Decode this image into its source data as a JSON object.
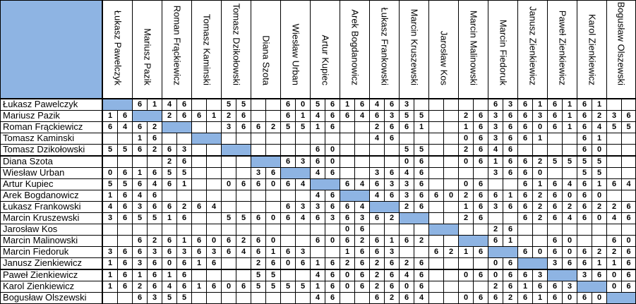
{
  "players": [
    "Łukasz Pawelczyk",
    "Mariusz Pazik",
    "Roman Frąckiewicz",
    "Tomasz Kaminski",
    "Tomasz Dzikołowski",
    "Diana Szota",
    "Wiesław Urban",
    "Artur Kupiec",
    "Arek Bogdanowicz",
    "Łukasz Frankowski",
    "Marcin Kruszewski",
    "Jarosław Kos",
    "Marcin Malinowski",
    "Marcin Fiedoruk",
    "Janusz Zienkiewicz",
    "Paweł Zienkiewicz",
    "Karol Zienkiewicz",
    "Bogusław Olszewski"
  ],
  "col_headers": [
    "Łukasz Pawelczyk",
    "Mariusz Pazik",
    "Roman Frąckiewicz",
    "Tomasz Kaminski",
    "Tomasz Dzikołowski",
    "Diana Szota",
    "Wiesław Urban",
    "Artur Kupiec",
    "Arek Bogdanowicz",
    "Łukasz Frankowski",
    "Marcin Kruszewski",
    "Jarosław Kos",
    "Marcin Malinowski",
    "Marcin Fiedoruk",
    "Janusz Zienkiewicz",
    "Paweł Zienkiewicz",
    "Karol Zienkiewicz",
    "Bogusław Olszewski"
  ],
  "diagonal_color": "#8eb4e3",
  "rows": [
    [
      "",
      "",
      "6",
      "1",
      "4",
      "6",
      "",
      "",
      "5",
      "5",
      "",
      "",
      "6",
      "0",
      "5",
      "6",
      "1",
      "6",
      "4",
      "6",
      "3",
      "",
      "",
      "",
      "",
      "",
      "6",
      "3",
      "6",
      "1",
      "6",
      "1",
      "6",
      "1",
      "",
      ""
    ],
    [
      "1",
      "6",
      "",
      "",
      "2",
      "6",
      "6",
      "1",
      "2",
      "6",
      "",
      "",
      "6",
      "1",
      "4",
      "6",
      "6",
      "4",
      "6",
      "3",
      "5",
      "5",
      "",
      "",
      "2",
      "6",
      "3",
      "6",
      "6",
      "3",
      "6",
      "1",
      "6",
      "2",
      "3",
      "6"
    ],
    [
      "6",
      "4",
      "6",
      "2",
      "",
      "",
      "",
      "",
      "3",
      "6",
      "6",
      "2",
      "5",
      "5",
      "1",
      "6",
      "",
      "",
      "2",
      "6",
      "6",
      "1",
      "",
      "",
      "1",
      "6",
      "3",
      "6",
      "6",
      "0",
      "6",
      "1",
      "6",
      "4",
      "5",
      "5"
    ],
    [
      "",
      "",
      "1",
      "6",
      "",
      "",
      "",
      "",
      "",
      "",
      "",
      "",
      "",
      "",
      "",
      "",
      "",
      "",
      "4",
      "6",
      "",
      "",
      "",
      "",
      "0",
      "6",
      "3",
      "6",
      "6",
      "1",
      "",
      "",
      "6",
      "1",
      "",
      ""
    ],
    [
      "5",
      "5",
      "6",
      "2",
      "6",
      "3",
      "",
      "",
      "",
      "",
      "",
      "",
      "",
      "",
      "6",
      "0",
      "",
      "",
      "",
      "",
      "5",
      "5",
      "",
      "",
      "2",
      "6",
      "4",
      "6",
      "",
      "",
      "",
      "",
      "6",
      "0",
      "",
      ""
    ],
    [
      "",
      "",
      "",
      "",
      "2",
      "6",
      "",
      "",
      "",
      "",
      "",
      "",
      "6",
      "3",
      "6",
      "0",
      "",
      "",
      "",
      "",
      "0",
      "6",
      "",
      "",
      "0",
      "6",
      "1",
      "6",
      "6",
      "2",
      "5",
      "5",
      "5",
      "5",
      "",
      ""
    ],
    [
      "0",
      "6",
      "1",
      "6",
      "5",
      "5",
      "",
      "",
      "",
      "",
      "3",
      "6",
      "",
      "",
      "4",
      "6",
      "",
      "",
      "3",
      "6",
      "4",
      "6",
      "",
      "",
      "",
      "",
      "3",
      "6",
      "6",
      "0",
      "",
      "",
      "5",
      "5",
      "",
      ""
    ],
    [
      "5",
      "5",
      "6",
      "4",
      "6",
      "1",
      "",
      "",
      "0",
      "6",
      "6",
      "0",
      "6",
      "4",
      "",
      "",
      "6",
      "4",
      "6",
      "3",
      "3",
      "6",
      "",
      "",
      "0",
      "6",
      "",
      "",
      "6",
      "1",
      "6",
      "4",
      "6",
      "1",
      "6",
      "4"
    ],
    [
      "1",
      "6",
      "4",
      "6",
      "",
      "",
      "",
      "",
      "",
      "",
      "",
      "",
      "",
      "",
      "4",
      "6",
      "",
      "",
      "4",
      "6",
      "3",
      "6",
      "6",
      "0",
      "2",
      "6",
      "6",
      "1",
      "6",
      "2",
      "6",
      "0",
      "6",
      "0",
      "",
      ""
    ],
    [
      "4",
      "6",
      "3",
      "6",
      "6",
      "2",
      "6",
      "4",
      "",
      "",
      "",
      "",
      "6",
      "3",
      "3",
      "6",
      "6",
      "4",
      "",
      "",
      "2",
      "6",
      "",
      "",
      "1",
      "6",
      "3",
      "6",
      "6",
      "2",
      "6",
      "2",
      "6",
      "2",
      "2",
      "6"
    ],
    [
      "3",
      "6",
      "5",
      "5",
      "1",
      "6",
      "",
      "",
      "5",
      "5",
      "6",
      "0",
      "6",
      "4",
      "6",
      "3",
      "6",
      "3",
      "6",
      "2",
      "",
      "",
      "",
      "",
      "2",
      "6",
      "",
      "",
      "6",
      "2",
      "6",
      "4",
      "6",
      "0",
      "4",
      "6"
    ],
    [
      "",
      "",
      "",
      "",
      "",
      "",
      "",
      "",
      "",
      "",
      "",
      "",
      "",
      "",
      "",
      "",
      "0",
      "6",
      "",
      "",
      "",
      "",
      "",
      "",
      "",
      "",
      "2",
      "6",
      "",
      "",
      "",
      "",
      "",
      "",
      "",
      ""
    ],
    [
      "",
      "",
      "6",
      "2",
      "6",
      "1",
      "6",
      "0",
      "6",
      "2",
      "6",
      "0",
      "",
      "",
      "6",
      "0",
      "6",
      "2",
      "6",
      "1",
      "6",
      "2",
      "",
      "",
      "",
      "",
      "6",
      "1",
      "",
      "",
      "6",
      "0",
      "",
      "",
      "6",
      "0"
    ],
    [
      "3",
      "6",
      "6",
      "3",
      "6",
      "3",
      "6",
      "3",
      "6",
      "4",
      "6",
      "1",
      "6",
      "3",
      "",
      "",
      "1",
      "6",
      "6",
      "3",
      "",
      "",
      "6",
      "2",
      "1",
      "6",
      "",
      "",
      "6",
      "0",
      "6",
      "0",
      "6",
      "2",
      "2",
      "6"
    ],
    [
      "1",
      "6",
      "3",
      "6",
      "0",
      "6",
      "1",
      "6",
      "",
      "",
      "2",
      "6",
      "0",
      "6",
      "1",
      "6",
      "2",
      "6",
      "2",
      "6",
      "2",
      "6",
      "",
      "",
      "",
      "",
      "0",
      "6",
      "",
      "",
      "3",
      "6",
      "6",
      "1",
      "1",
      "6"
    ],
    [
      "1",
      "6",
      "1",
      "6",
      "1",
      "6",
      "",
      "",
      "",
      "",
      "5",
      "5",
      "",
      "",
      "4",
      "6",
      "0",
      "6",
      "2",
      "6",
      "4",
      "6",
      "",
      "",
      "0",
      "6",
      "0",
      "6",
      "6",
      "3",
      "",
      "",
      "3",
      "6",
      "0",
      "6"
    ],
    [
      "1",
      "6",
      "2",
      "6",
      "4",
      "6",
      "1",
      "6",
      "0",
      "6",
      "5",
      "5",
      "5",
      "5",
      "1",
      "6",
      "0",
      "6",
      "2",
      "6",
      "0",
      "6",
      "",
      "",
      "",
      "",
      "2",
      "6",
      "1",
      "6",
      "6",
      "3",
      "",
      "",
      "0",
      "6"
    ],
    [
      "",
      "",
      "6",
      "3",
      "5",
      "5",
      "",
      "",
      "",
      "",
      "",
      "",
      "",
      "",
      "4",
      "6",
      "",
      "",
      "6",
      "2",
      "6",
      "4",
      "",
      "",
      "0",
      "6",
      "6",
      "2",
      "6",
      "1",
      "6",
      "0",
      "6",
      "0",
      "",
      ""
    ]
  ]
}
